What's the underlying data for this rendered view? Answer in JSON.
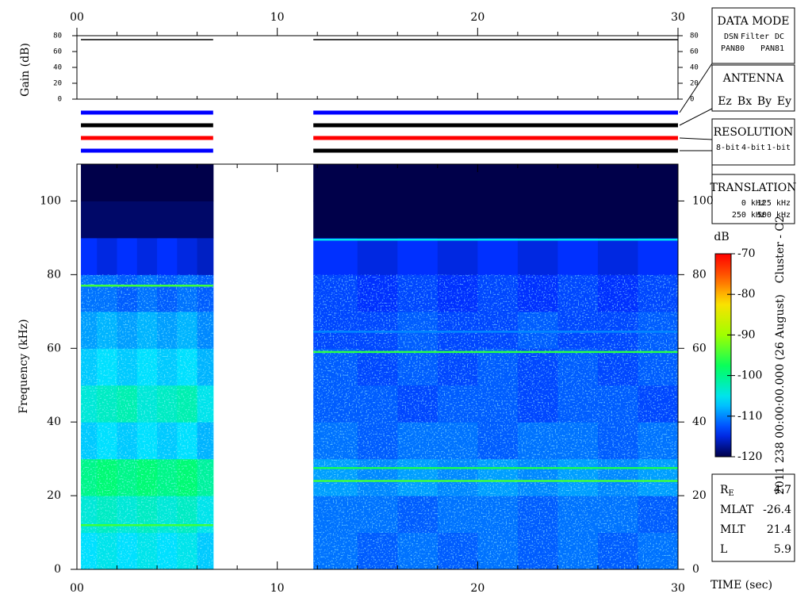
{
  "chart_data": {
    "type": "spectrogram",
    "xlabel": "TIME (sec)",
    "xlim": [
      0,
      30
    ],
    "xticks": [
      {
        "value": 0,
        "label": "00"
      },
      10,
      20,
      30
    ],
    "xminor": [
      2,
      4,
      6,
      8,
      12,
      14,
      16,
      18,
      22,
      24,
      26,
      28
    ],
    "ylabel": "Frequency (kHz)",
    "ylim": [
      0,
      110
    ],
    "yticks": [
      0,
      20,
      40,
      60,
      80,
      100
    ],
    "gain": {
      "ylabel": "Gain (dB)",
      "ylim": [
        0,
        80
      ],
      "yticks": [
        0,
        20,
        40,
        60,
        80
      ],
      "segments": [
        {
          "start": 0.2,
          "end": 6.8,
          "value": 75
        },
        {
          "start": 11.8,
          "end": 30,
          "value": 75
        }
      ]
    },
    "mode_rows": [
      {
        "colors": [
          "#0000ff",
          "#0000ff"
        ]
      },
      {
        "colors": [
          "#000000",
          "#000000"
        ]
      },
      {
        "colors": [
          "#ff0000",
          "#ff0000"
        ]
      },
      {
        "colors": [
          "#0000ff",
          "#000000"
        ]
      }
    ],
    "spectrogram": {
      "freq_edges": [
        0,
        10,
        20,
        30,
        40,
        50,
        60,
        70,
        80,
        90,
        100,
        110
      ],
      "segments": [
        {
          "time_edges": [
            0.2,
            1,
            2,
            3,
            4,
            5,
            6,
            6.8
          ],
          "values": [
            [
              -106,
              -105,
              -106,
              -105,
              -106,
              -105,
              -107
            ],
            [
              -104,
              -103,
              -104,
              -103,
              -104,
              -103,
              -105
            ],
            [
              -100,
              -99,
              -100,
              -99,
              -100,
              -99,
              -101
            ],
            [
              -107,
              -106,
              -107,
              -106,
              -107,
              -106,
              -108
            ],
            [
              -104,
              -103,
              -102,
              -104,
              -103,
              -102,
              -105
            ],
            [
              -107,
              -106,
              -107,
              -106,
              -107,
              -106,
              -108
            ],
            [
              -109,
              -108,
              -109,
              -108,
              -109,
              -108,
              -110
            ],
            [
              -111,
              -111,
              -112,
              -111,
              -112,
              -111,
              -112
            ],
            [
              -114,
              -115,
              -114,
              -115,
              -114,
              -115,
              -116
            ],
            [
              -119,
              -119,
              -119,
              -119,
              -119,
              -119,
              -119
            ],
            [
              -120,
              -120,
              -120,
              -120,
              -120,
              -120,
              -120
            ]
          ],
          "lines": {
            "freqs": [
              77,
              12
            ],
            "values": [
              -95,
              -95
            ]
          }
        },
        {
          "time_edges": [
            11.8,
            14,
            16,
            18,
            20,
            22,
            24,
            26,
            28,
            30
          ],
          "values": [
            [
              -111,
              -112,
              -111,
              -112,
              -111,
              -112,
              -111,
              -112,
              -111
            ],
            [
              -111,
              -111,
              -112,
              -111,
              -111,
              -112,
              -111,
              -111,
              -112
            ],
            [
              -109,
              -110,
              -109,
              -110,
              -109,
              -110,
              -109,
              -110,
              -109
            ],
            [
              -111,
              -112,
              -111,
              -111,
              -112,
              -111,
              -111,
              -112,
              -111
            ],
            [
              -112,
              -112,
              -113,
              -112,
              -112,
              -113,
              -112,
              -112,
              -113
            ],
            [
              -112,
              -113,
              -112,
              -113,
              -112,
              -113,
              -112,
              -113,
              -112
            ],
            [
              -113,
              -113,
              -112,
              -113,
              -113,
              -112,
              -113,
              -113,
              -112
            ],
            [
              -113,
              -114,
              -113,
              -114,
              -113,
              -114,
              -113,
              -114,
              -113
            ],
            [
              -114,
              -115,
              -114,
              -115,
              -114,
              -115,
              -114,
              -115,
              -114
            ],
            [
              -120,
              -120,
              -120,
              -120,
              -120,
              -120,
              -120,
              -120,
              -120
            ],
            [
              -120,
              -120,
              -120,
              -120,
              -120,
              -120,
              -120,
              -120,
              -120
            ]
          ],
          "lines": {
            "freqs": [
              89.5,
              64.5,
              59,
              27.5,
              24
            ],
            "values": [
              -105,
              -110,
              -96,
              -97,
              -95
            ]
          }
        }
      ]
    },
    "colorbar": {
      "label": "dB",
      "clim": [
        -120,
        -70
      ],
      "ticks": [
        -70,
        -80,
        -90,
        -100,
        -110,
        -120
      ]
    },
    "date": "2011 238 00:00:00.000 (26 August)",
    "spacecraft": "Cluster - C2",
    "legends": [
      {
        "title": "DATA MODE",
        "items": [
          {
            "label": "DSN",
            "color": "#ff0000"
          },
          {
            "label": "Filter",
            "color": "#00c000"
          },
          {
            "label": "DC",
            "color": "#0000ff"
          },
          {
            "label": "PAN80",
            "color": "#000000"
          },
          {
            "label": "PAN81",
            "color": "#00d0d0"
          }
        ]
      },
      {
        "title": "ANTENNA",
        "items": [
          {
            "label": "Ez",
            "color": "#ff0000"
          },
          {
            "label": "Bx",
            "color": "#00c000"
          },
          {
            "label": "By",
            "color": "#0000ff"
          },
          {
            "label": "Ey",
            "color": "#000000"
          }
        ]
      },
      {
        "title": "RESOLUTION",
        "items": [
          {
            "label": "8-bit",
            "color": "#ff0000"
          },
          {
            "label": "4-bit",
            "color": "#00c000"
          },
          {
            "label": "1-bit",
            "color": "#0000ff"
          }
        ]
      },
      {
        "title": "TRANSLATION",
        "items": [
          {
            "label": "0 kHz",
            "color": "#ff0000"
          },
          {
            "label": "125 kHz",
            "color": "#00c000"
          },
          {
            "label": "250 kHz",
            "color": "#0000ff"
          },
          {
            "label": "500 kHz",
            "color": "#000000"
          }
        ]
      }
    ],
    "info": [
      {
        "label": "R",
        "sub": "E",
        "value": 4.7
      },
      {
        "label": "MLAT",
        "value": -26.4
      },
      {
        "label": "MLT",
        "value": 21.4
      },
      {
        "label": "L",
        "value": 5.9
      }
    ]
  }
}
